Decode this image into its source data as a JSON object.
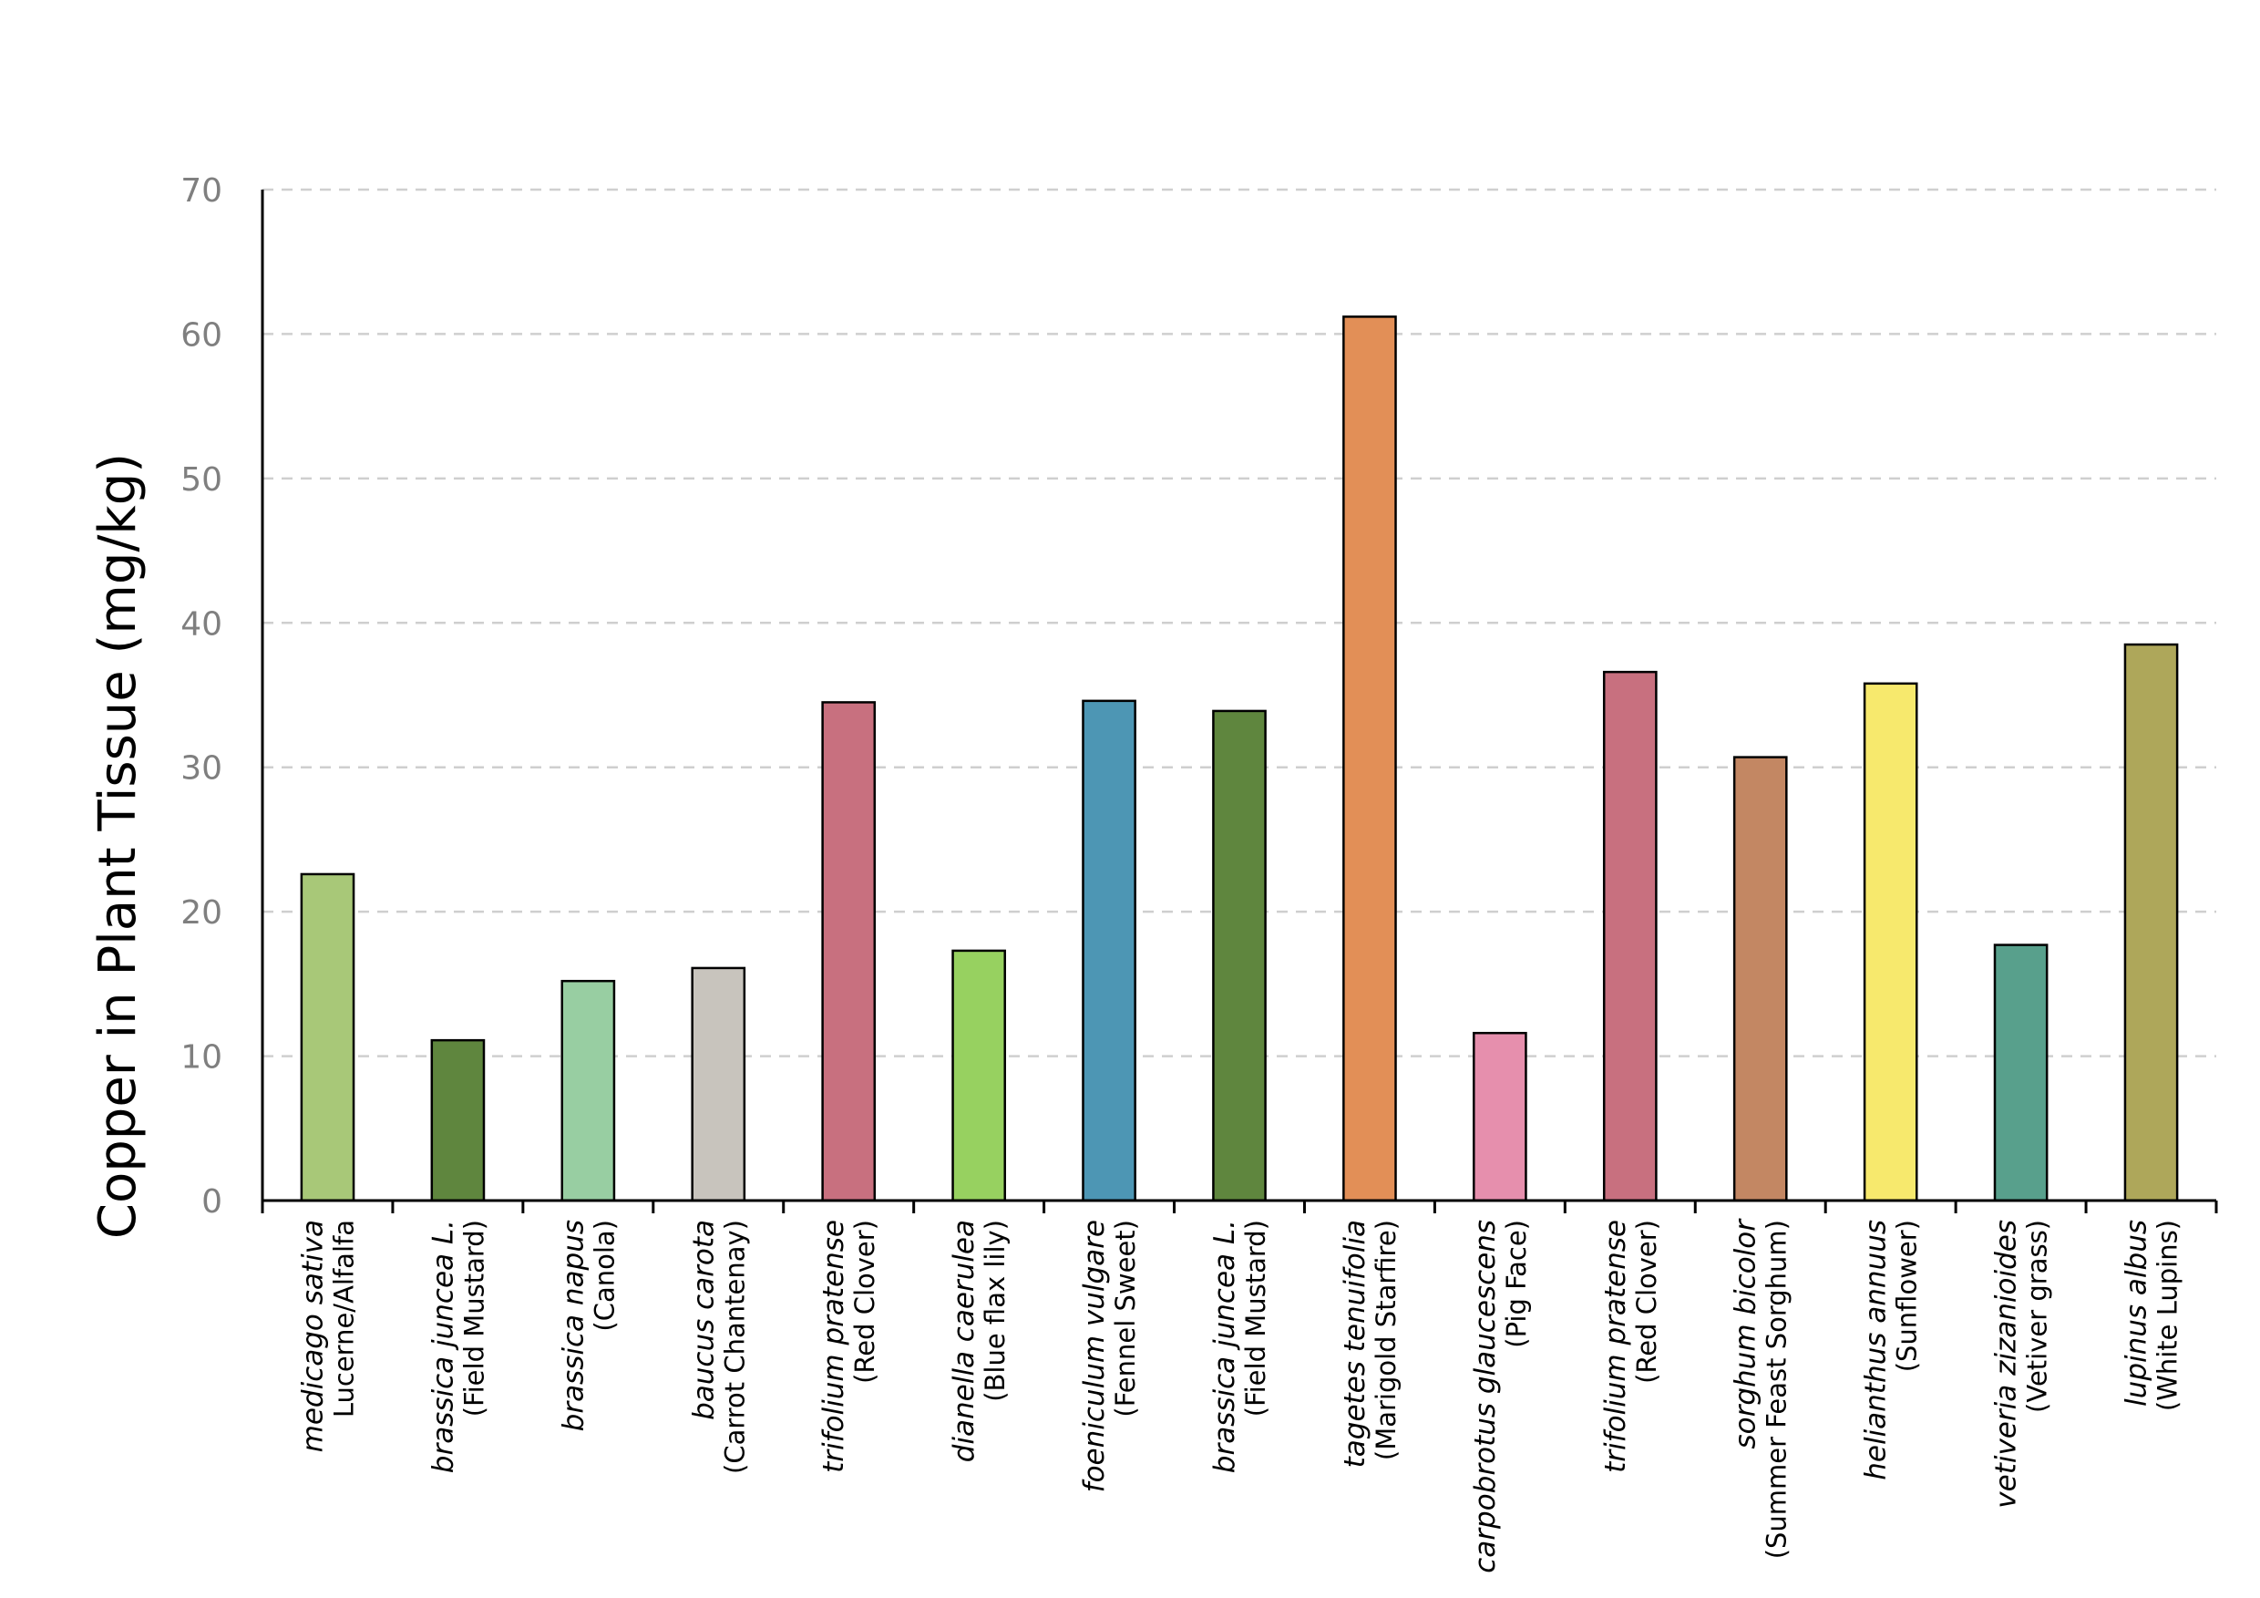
{
  "chart_data": {
    "type": "bar",
    "title": "",
    "ylabel": "Copper in Plant Tissue (mg/kg)",
    "xlabel": "",
    "ylim": [
      0,
      70
    ],
    "yticks": [
      0,
      10,
      20,
      30,
      40,
      50,
      60,
      70
    ],
    "grid": "horizontal-dashed",
    "categories": [
      {
        "scientific": "medicago sativa",
        "common": "Lucerne/Alfalfa"
      },
      {
        "scientific": "brassica juncea L.",
        "common": "(Field Mustard)"
      },
      {
        "scientific": "brassica napus",
        "common": "(Canola)"
      },
      {
        "scientific": "baucus carota",
        "common": "(Carrot Chantenay)"
      },
      {
        "scientific": "trifolium pratense",
        "common": "(Red Clover)"
      },
      {
        "scientific": "dianella caerulea",
        "common": "(Blue flax lily)"
      },
      {
        "scientific": "foeniculum vulgare",
        "common": "(Fennel Sweet)"
      },
      {
        "scientific": "brassica juncea L.",
        "common": "(Field Mustard)"
      },
      {
        "scientific": "tagetes tenuifolia",
        "common": "(Marigold Starfire)"
      },
      {
        "scientific": "carpobrotus glaucescens",
        "common": "(Pig Face)"
      },
      {
        "scientific": "trifolium pratense",
        "common": "(Red Clover)"
      },
      {
        "scientific": "sorghum bicolor",
        "common": "(Summer Feast Sorghum)"
      },
      {
        "scientific": "helianthus annuus",
        "common": "(Sunflower)"
      },
      {
        "scientific": "vetiveria zizanioides",
        "common": "(Vetiver grass)"
      },
      {
        "scientific": "lupinus albus",
        "common": "(White Lupins)"
      }
    ],
    "values": [
      22.6,
      11.1,
      15.2,
      16.1,
      34.5,
      17.3,
      34.6,
      33.9,
      61.2,
      11.6,
      36.6,
      30.7,
      35.8,
      17.7,
      38.5
    ],
    "colors": [
      "#a8c878",
      "#5f863e",
      "#98cea2",
      "#c8c4bd",
      "#c8707f",
      "#97d160",
      "#4d96b4",
      "#5f863e",
      "#e28f57",
      "#e68fad",
      "#c8707f",
      "#c38763",
      "#f7e96d",
      "#58a08c",
      "#aea75a"
    ]
  }
}
